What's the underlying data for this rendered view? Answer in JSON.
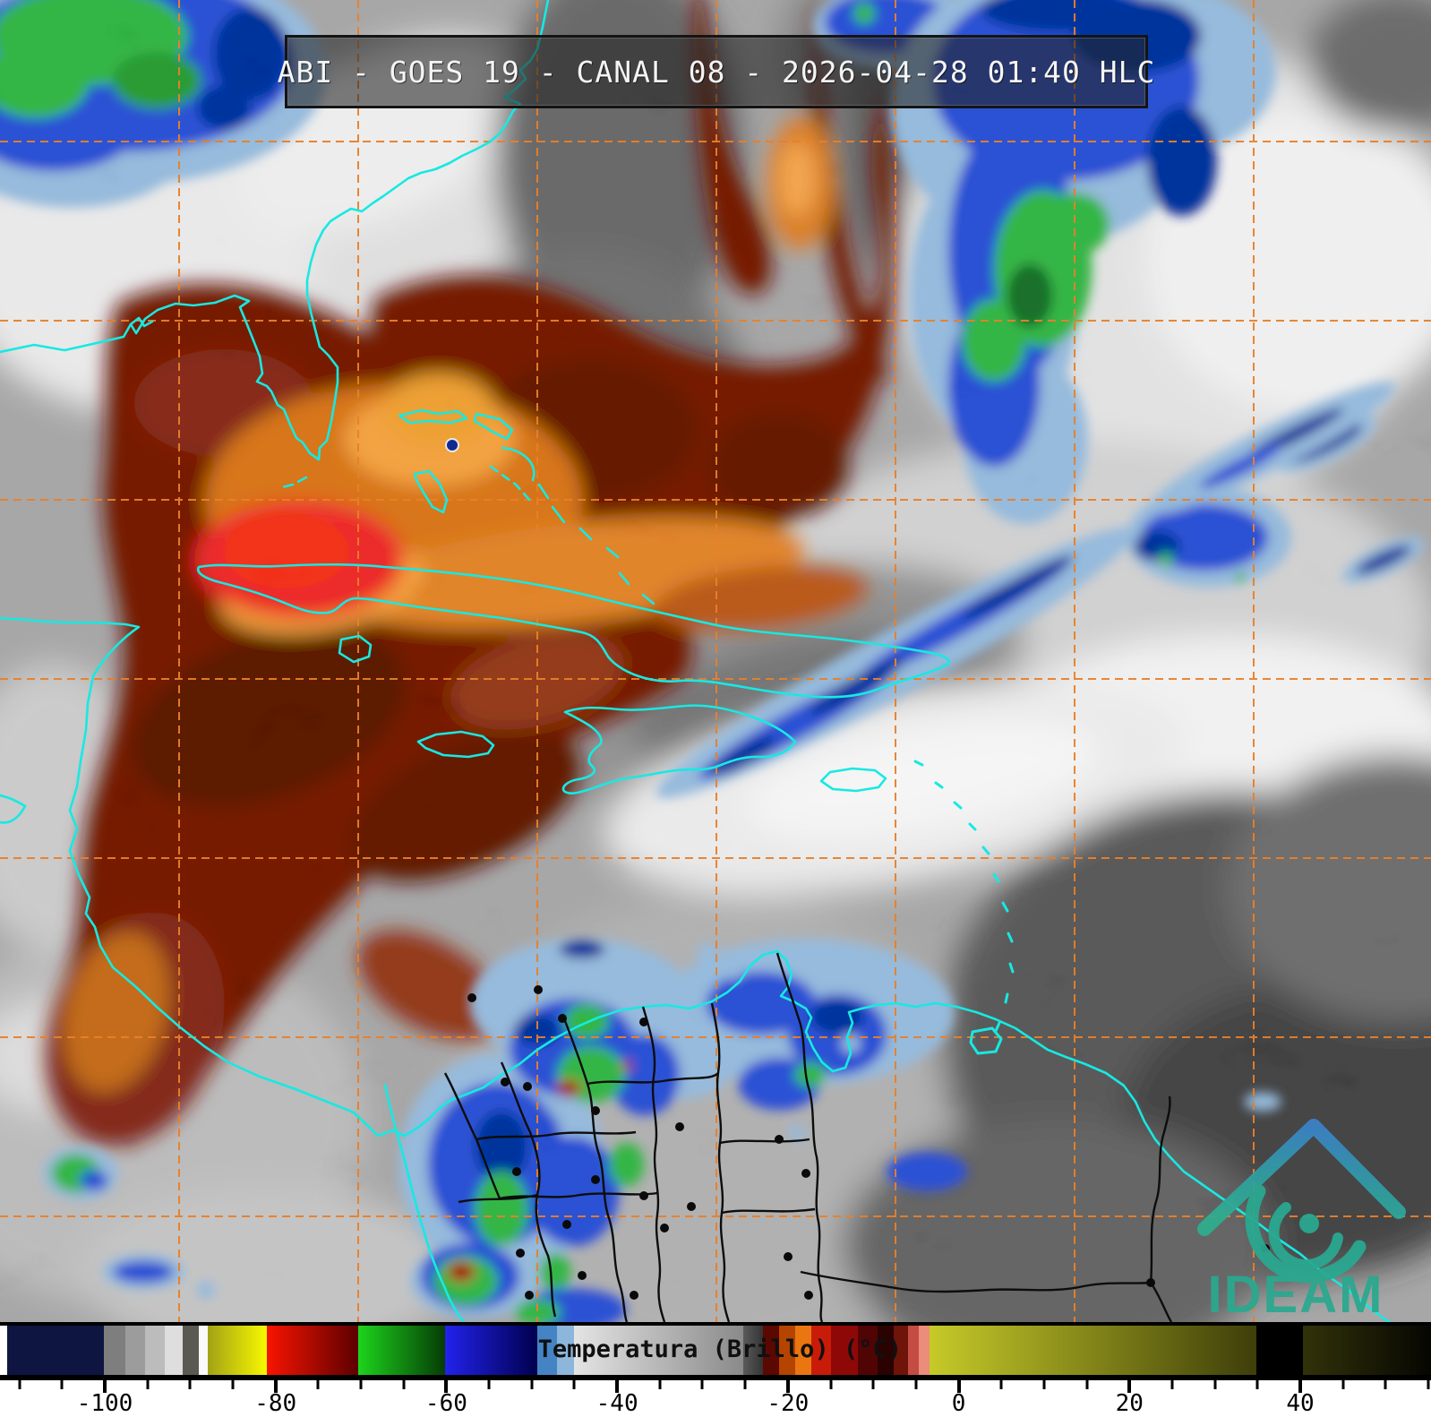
{
  "header": {
    "title": "ABI - GOES 19 - CANAL 08 - 2026-04-28 01:40 HLC"
  },
  "branding": {
    "logo_text": "IDEAM",
    "logo_color": "#2aa890"
  },
  "map": {
    "coastline_color": "#17e9e2",
    "graticule_color": "#e8802a",
    "political_border_color": "#0d0d0d",
    "palette": {
      "dry_maroon": "#5a1006",
      "dry_orange": "#d06a14",
      "dry_bright_orange": "#ef8d28",
      "dry_red_core": "#e61414",
      "cold_fringe_blue": "#7ea9d2",
      "cold_blue": "#1435c8",
      "cold_navy": "#021c86",
      "cold_green": "#1ea32a",
      "cold_dark_green": "#0b5517",
      "overshoot_red": "#8c1010"
    }
  },
  "colorbar": {
    "label": "Temperatura (Brillo) (°C)",
    "value_range": [
      -110,
      55
    ],
    "minor_step": 5,
    "major_ticks": [
      -100,
      -80,
      -60,
      -40,
      -20,
      0,
      20,
      40
    ],
    "gradient_stops": [
      {
        "p": 0,
        "c": "#ffffff"
      },
      {
        "p": 0.5,
        "c": "#ffffff"
      },
      {
        "p": 0.5,
        "c": "#0d1540"
      },
      {
        "p": 7.26,
        "c": "#0d1540"
      },
      {
        "p": 7.26,
        "c": "#7e7e7e"
      },
      {
        "p": 8.76,
        "c": "#7e7e7e"
      },
      {
        "p": 8.76,
        "c": "#9c9c9c"
      },
      {
        "p": 10.14,
        "c": "#9c9c9c"
      },
      {
        "p": 10.14,
        "c": "#bcbcbc"
      },
      {
        "p": 11.51,
        "c": "#bcbcbc"
      },
      {
        "p": 11.51,
        "c": "#dedede"
      },
      {
        "p": 12.77,
        "c": "#dedede"
      },
      {
        "p": 12.77,
        "c": "#5a5a52"
      },
      {
        "p": 13.89,
        "c": "#5a5a52"
      },
      {
        "p": 13.89,
        "c": "#fafafa"
      },
      {
        "p": 14.52,
        "c": "#fafafa"
      },
      {
        "p": 14.52,
        "c": "#a2a216"
      },
      {
        "p": 18.65,
        "c": "#f8f800"
      },
      {
        "p": 18.65,
        "c": "#f81400"
      },
      {
        "p": 25.03,
        "c": "#5c0000"
      },
      {
        "p": 25.03,
        "c": "#1cd41c"
      },
      {
        "p": 31.1,
        "c": "#063c06"
      },
      {
        "p": 31.1,
        "c": "#2222ec"
      },
      {
        "p": 37.55,
        "c": "#00004e"
      },
      {
        "p": 37.55,
        "c": "#4484c4"
      },
      {
        "p": 38.92,
        "c": "#4484c4"
      },
      {
        "p": 38.92,
        "c": "#8cb6dc"
      },
      {
        "p": 40.11,
        "c": "#8cb6dc"
      },
      {
        "p": 40.11,
        "c": "#e4e4e4"
      },
      {
        "p": 51.94,
        "c": "#8a8a8a"
      },
      {
        "p": 51.94,
        "c": "#5a5a5a"
      },
      {
        "p": 53.32,
        "c": "#343434"
      },
      {
        "p": 53.32,
        "c": "#5a0800"
      },
      {
        "p": 54.44,
        "c": "#5a0800"
      },
      {
        "p": 54.44,
        "c": "#b44400"
      },
      {
        "p": 55.57,
        "c": "#b44400"
      },
      {
        "p": 55.57,
        "c": "#ea7612"
      },
      {
        "p": 56.7,
        "c": "#ea7612"
      },
      {
        "p": 56.7,
        "c": "#c81c08"
      },
      {
        "p": 58.07,
        "c": "#c81c08"
      },
      {
        "p": 58.07,
        "c": "#8e0808"
      },
      {
        "p": 59.95,
        "c": "#8e0808"
      },
      {
        "p": 59.95,
        "c": "#500404"
      },
      {
        "p": 61.33,
        "c": "#500404"
      },
      {
        "p": 61.33,
        "c": "#2a0202"
      },
      {
        "p": 62.45,
        "c": "#2a0202"
      },
      {
        "p": 62.45,
        "c": "#6e1408"
      },
      {
        "p": 63.45,
        "c": "#6e1408"
      },
      {
        "p": 63.45,
        "c": "#c44c44"
      },
      {
        "p": 64.21,
        "c": "#c44c44"
      },
      {
        "p": 64.21,
        "c": "#ec8c7a"
      },
      {
        "p": 64.96,
        "c": "#ec8c7a"
      },
      {
        "p": 64.96,
        "c": "#c6ca28"
      },
      {
        "p": 87.8,
        "c": "#3e3e0a"
      },
      {
        "p": 87.8,
        "c": "#000000"
      },
      {
        "p": 91.05,
        "c": "#000000"
      },
      {
        "p": 91.05,
        "c": "#32320a"
      },
      {
        "p": 100,
        "c": "#060602"
      }
    ]
  }
}
